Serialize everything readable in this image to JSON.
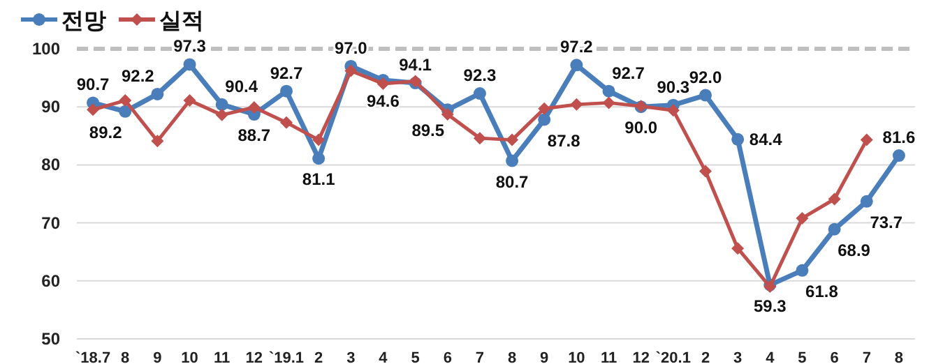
{
  "chart_data": {
    "type": "line",
    "categories": [
      "`18.7",
      "8",
      "9",
      "10",
      "11",
      "12",
      "`19.1",
      "2",
      "3",
      "4",
      "5",
      "6",
      "7",
      "8",
      "9",
      "10",
      "11",
      "12",
      "`20.1",
      "2",
      "3",
      "4",
      "5",
      "6",
      "7",
      "8"
    ],
    "series": [
      {
        "name": "전망",
        "color": "#4a7ebb",
        "marker": "circle",
        "values": [
          90.7,
          89.2,
          92.2,
          97.3,
          90.4,
          88.7,
          92.7,
          81.1,
          97.0,
          94.6,
          94.1,
          89.5,
          92.3,
          80.7,
          87.8,
          97.2,
          92.7,
          90.0,
          90.3,
          92.0,
          84.4,
          59.3,
          61.8,
          68.9,
          73.7,
          81.6
        ],
        "value_labels": [
          "90.7",
          "89.2",
          "92.2",
          "97.3",
          "90.4",
          "88.7",
          "92.7",
          "81.1",
          "97.0",
          "94.6",
          "94.1",
          "89.5",
          "92.3",
          "80.7",
          "87.8",
          "97.2",
          "92.7",
          "90.0",
          "90.3",
          "92.0",
          "84.4",
          "59.3",
          "61.8",
          "68.9",
          "73.7",
          "81.6"
        ]
      },
      {
        "name": "실적",
        "color": "#c0504d",
        "marker": "diamond",
        "values": [
          89.5,
          91.1,
          84.1,
          91.1,
          88.6,
          89.9,
          87.3,
          84.3,
          96.2,
          94.0,
          94.4,
          88.7,
          84.6,
          84.3,
          89.7,
          90.4,
          90.7,
          90.1,
          89.4,
          78.9,
          65.6,
          59.0,
          70.8,
          74.1,
          84.3,
          null
        ]
      }
    ],
    "ylim": [
      50,
      100
    ],
    "yticks": [
      50,
      60,
      70,
      80,
      90,
      100
    ],
    "grid": "y",
    "legend": "top left",
    "ref_lines": [
      {
        "axis": "y",
        "value": 100,
        "color": "#bfbfbf",
        "line_style": "dashed"
      }
    ]
  }
}
